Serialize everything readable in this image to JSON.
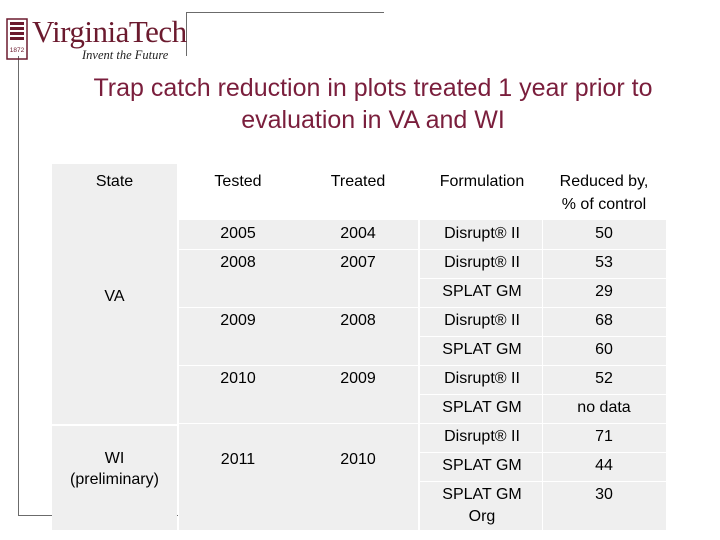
{
  "logo": {
    "wordmark": "VirginiaTech",
    "tagline": "Invent the Future",
    "seal_year": "1872",
    "brand_color": "#6b1a2e"
  },
  "title": "Trap catch reduction in plots treated 1 year prior to evaluation in VA and WI",
  "table": {
    "headers": {
      "state": "State",
      "tested": "Tested",
      "treated": "Treated",
      "formulation": "Formulation",
      "reduced_line1": "Reduced by,",
      "reduced_line2": "% of control"
    },
    "states": {
      "va": "VA",
      "wi_line1": "WI",
      "wi_line2": "(preliminary)"
    },
    "years": {
      "r1_tested": "2005",
      "r1_treated": "2004",
      "r2_tested": "2008",
      "r2_treated": "2007",
      "r3_tested": "2009",
      "r3_treated": "2008",
      "r4_tested": "2010",
      "r4_treated": "2009",
      "r5_tested": "2011",
      "r5_treated": "2010"
    },
    "rows": [
      {
        "formulation": "Disrupt® II",
        "reduced": "50"
      },
      {
        "formulation": "Disrupt® II",
        "reduced": "53"
      },
      {
        "formulation": "SPLAT GM",
        "reduced": "29"
      },
      {
        "formulation": "Disrupt® II",
        "reduced": "68"
      },
      {
        "formulation": "SPLAT GM",
        "reduced": "60"
      },
      {
        "formulation": "Disrupt® II",
        "reduced": "52"
      },
      {
        "formulation": "SPLAT GM",
        "reduced": "no data"
      },
      {
        "formulation": "Disrupt® II",
        "reduced": "71"
      },
      {
        "formulation": "SPLAT GM",
        "reduced": "44"
      },
      {
        "formulation_line1": "SPLAT GM",
        "formulation_line2": "Org",
        "reduced": "30"
      }
    ]
  }
}
